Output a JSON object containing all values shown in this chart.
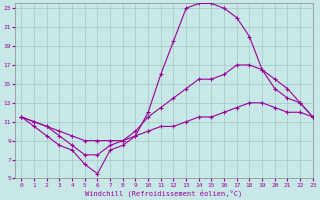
{
  "xlabel": "Windchill (Refroidissement éolien,°C)",
  "background_color": "#c8e8e8",
  "line_color": "#990099",
  "grid_color": "#aacccc",
  "xlim": [
    -0.5,
    23
  ],
  "ylim": [
    5,
    23.5
  ],
  "xticks": [
    0,
    1,
    2,
    3,
    4,
    5,
    6,
    7,
    8,
    9,
    10,
    11,
    12,
    13,
    14,
    15,
    16,
    17,
    18,
    19,
    20,
    21,
    22,
    23
  ],
  "yticks": [
    5,
    7,
    9,
    11,
    13,
    15,
    17,
    19,
    21,
    23
  ],
  "line1_x": [
    0,
    1,
    2,
    3,
    4,
    5,
    6,
    7,
    8,
    9,
    10,
    11,
    12,
    13,
    14,
    15,
    16,
    17,
    18,
    19,
    20,
    21,
    22,
    23
  ],
  "line1_y": [
    11.5,
    10.5,
    9.5,
    8.5,
    8.0,
    6.5,
    5.5,
    8.0,
    8.5,
    9.5,
    12.0,
    16.0,
    19.5,
    23.0,
    23.5,
    23.5,
    23.0,
    22.0,
    20.0,
    16.5,
    14.5,
    13.5,
    13.0,
    11.5
  ],
  "line2_x": [
    0,
    1,
    2,
    3,
    4,
    5,
    6,
    7,
    8,
    9,
    10,
    11,
    12,
    13,
    14,
    15,
    16,
    17,
    18,
    19,
    20,
    21,
    22,
    23
  ],
  "line2_y": [
    11.5,
    11.0,
    10.5,
    9.5,
    8.5,
    7.5,
    7.5,
    8.5,
    9.0,
    10.0,
    11.5,
    12.5,
    13.5,
    14.5,
    15.5,
    15.5,
    16.0,
    17.0,
    17.0,
    16.5,
    15.5,
    14.5,
    13.0,
    11.5
  ],
  "line3_x": [
    0,
    1,
    2,
    3,
    4,
    5,
    6,
    7,
    8,
    9,
    10,
    11,
    12,
    13,
    14,
    15,
    16,
    17,
    18,
    19,
    20,
    21,
    22,
    23
  ],
  "line3_y": [
    11.5,
    11.0,
    10.5,
    10.0,
    9.5,
    9.0,
    9.0,
    9.0,
    9.0,
    9.5,
    10.0,
    10.5,
    10.5,
    11.0,
    11.5,
    11.5,
    12.0,
    12.5,
    13.0,
    13.0,
    12.5,
    12.0,
    12.0,
    11.5
  ]
}
